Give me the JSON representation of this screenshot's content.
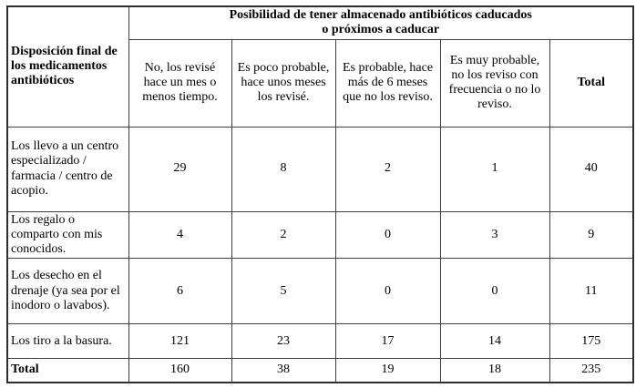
{
  "colors": {
    "background": "#ffffff",
    "text": "#000000",
    "border_inner": "#3f3f3f",
    "border_outer": "#2e2e2e"
  },
  "table": {
    "corner_header": "Disposición final de los medicamentos antibióticos",
    "group_header": {
      "line1": "Posibilidad de tener almacenado antibióticos caducados",
      "line2": "o próximos a caducar"
    },
    "column_headers": [
      "No, los revisé hace un mes o menos tiempo.",
      "Es poco probable, hace unos meses los revisé.",
      "Es probable, hace más de 6 meses que no los reviso.",
      "Es muy probable, no los reviso con frecuencia o no lo reviso.",
      "Total"
    ],
    "rows": [
      {
        "label": "Los llevo a un centro especializado / farmacia / centro de acopio.",
        "values": [
          "29",
          "8",
          "2",
          "1",
          "40"
        ]
      },
      {
        "label": "Los regalo o comparto con mis conocidos.",
        "values": [
          "4",
          "2",
          "0",
          "3",
          "9"
        ]
      },
      {
        "label": "Los desecho en el drenaje (ya sea por el inodoro o lavabos).",
        "values": [
          "6",
          "5",
          "0",
          "0",
          "11"
        ]
      },
      {
        "label": "Los tiro a la basura.",
        "values": [
          "121",
          "23",
          "17",
          "14",
          "175"
        ]
      },
      {
        "label": "Total",
        "values": [
          "160",
          "38",
          "19",
          "18",
          "235"
        ]
      }
    ]
  },
  "chart_data": {
    "type": "table",
    "title": "Posibilidad de tener almacenado antibióticos caducados o próximos a caducar",
    "row_dimension": "Disposición final de los medicamentos antibióticos",
    "columns": [
      "No, los revisé hace un mes o menos tiempo.",
      "Es poco probable, hace unos meses los revisé.",
      "Es probable, hace más de 6 meses que no los reviso.",
      "Es muy probable, no los reviso con frecuencia o no lo reviso.",
      "Total"
    ],
    "rows": [
      {
        "label": "Los llevo a un centro especializado / farmacia / centro de acopio.",
        "values": [
          29,
          8,
          2,
          1,
          40
        ]
      },
      {
        "label": "Los regalo o comparto con mis conocidos.",
        "values": [
          4,
          2,
          0,
          3,
          9
        ]
      },
      {
        "label": "Los desecho en el drenaje (ya sea por el inodoro o lavabos).",
        "values": [
          6,
          5,
          0,
          0,
          11
        ]
      },
      {
        "label": "Los tiro a la basura.",
        "values": [
          121,
          23,
          17,
          14,
          175
        ]
      },
      {
        "label": "Total",
        "values": [
          160,
          38,
          19,
          18,
          235
        ]
      }
    ]
  }
}
